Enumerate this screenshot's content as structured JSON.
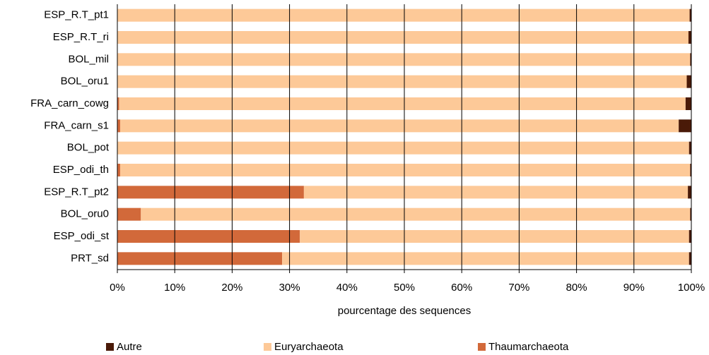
{
  "chart_data": {
    "type": "stacked_barh",
    "categories": [
      "ESP_R.T_pt1",
      "ESP_R.T_ri",
      "BOL_mil",
      "BOL_oru1",
      "FRA_carn_cowg",
      "FRA_carn_s1",
      "BOL_pot",
      "ESP_odi_th",
      "ESP_R.T_pt2",
      "BOL_oru0",
      "ESP_odi_st",
      "PRT_sd"
    ],
    "series": [
      {
        "name": "Autre",
        "color": "#4a1a08",
        "values": [
          0.3,
          0.5,
          0.2,
          0.8,
          1.0,
          2.2,
          0.4,
          0.2,
          0.6,
          0.2,
          0.4,
          0.4
        ]
      },
      {
        "name": "Euryarchaeota",
        "color": "#fdc998",
        "values": [
          99.7,
          99.5,
          99.8,
          99.2,
          98.7,
          97.3,
          99.6,
          99.3,
          66.9,
          95.7,
          67.8,
          70.9
        ]
      },
      {
        "name": "Thaumarchaeota",
        "color": "#d2693a",
        "values": [
          0,
          0,
          0,
          0,
          0.3,
          0.5,
          0,
          0.5,
          32.5,
          4.1,
          31.8,
          28.7
        ]
      }
    ],
    "xlabel": "pourcentage des sequences",
    "xlim": [
      0,
      100
    ],
    "xticks": [
      {
        "value": 0,
        "label": "0%"
      },
      {
        "value": 10,
        "label": "10%"
      },
      {
        "value": 20,
        "label": "20%"
      },
      {
        "value": 30,
        "label": "30%"
      },
      {
        "value": 40,
        "label": "40%"
      },
      {
        "value": 50,
        "label": "50%"
      },
      {
        "value": 60,
        "label": "60%"
      },
      {
        "value": 70,
        "label": "70%"
      },
      {
        "value": 80,
        "label": "80%"
      },
      {
        "value": 90,
        "label": "90%"
      },
      {
        "value": 100,
        "label": "100%"
      }
    ],
    "grid": true,
    "legend": "bottom"
  }
}
